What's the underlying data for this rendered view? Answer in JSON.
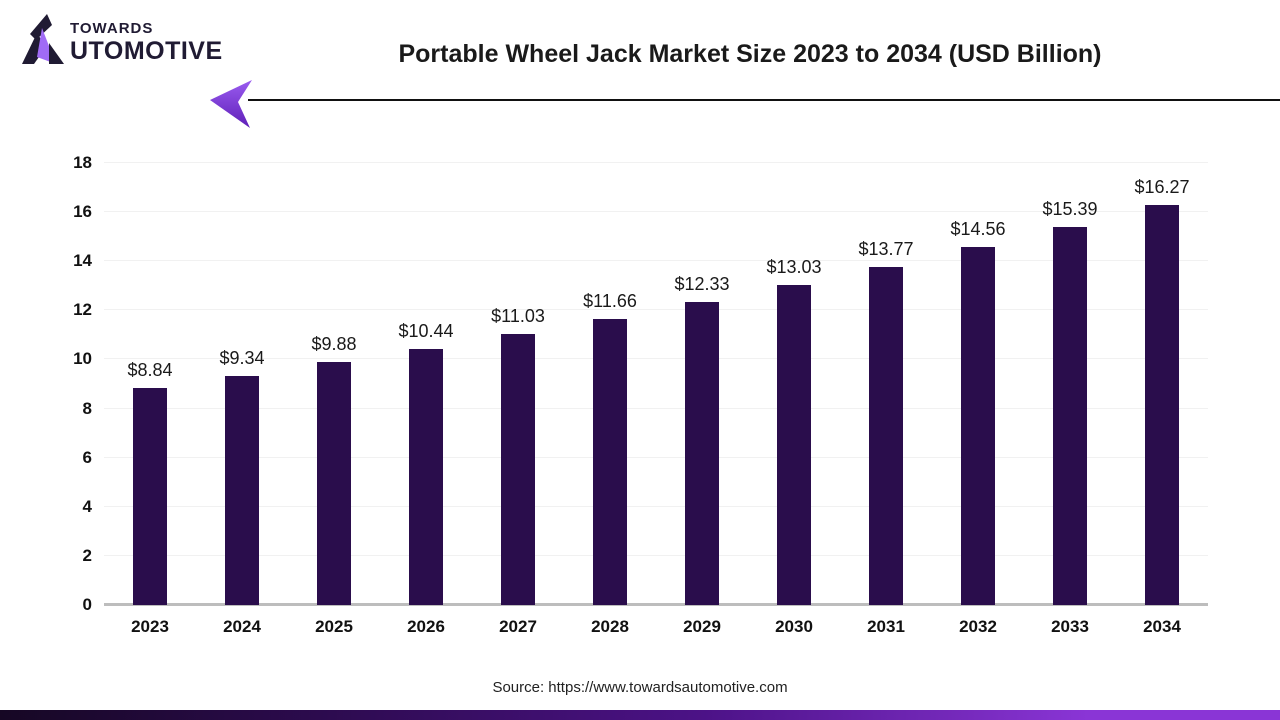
{
  "logo": {
    "top_text": "TOWARDS",
    "bottom_text": "UTOMOTIVE",
    "brand": "TOWARDS AUTOMOTIVE",
    "mark_dark": "#201b33",
    "mark_purple": "#a06bf5"
  },
  "header": {
    "title": "Portable Wheel Jack Market Size 2023 to 2034 (USD Billion)"
  },
  "chart_data": {
    "type": "bar",
    "title": "Portable Wheel Jack Market Size 2023 to 2034 (USD Billion)",
    "categories": [
      "2023",
      "2024",
      "2025",
      "2026",
      "2027",
      "2028",
      "2029",
      "2030",
      "2031",
      "2032",
      "2033",
      "2034"
    ],
    "values": [
      8.84,
      9.34,
      9.88,
      10.44,
      11.03,
      11.66,
      12.33,
      13.03,
      13.77,
      14.56,
      15.39,
      16.27
    ],
    "value_labels": [
      "$8.84",
      "$9.34",
      "$9.88",
      "$10.44",
      "$11.03",
      "$11.66",
      "$12.33",
      "$13.03",
      "$13.77",
      "$14.56",
      "$15.39",
      "$16.27"
    ],
    "xlabel": "",
    "ylabel": "",
    "ylim": [
      0,
      18
    ],
    "ytick_step": 2,
    "grid": true,
    "legend": false,
    "bar_color": "#2a0d4c",
    "grid_color": "#f1f1f1",
    "axis_line_color": "#bdbdbd"
  },
  "decor": {
    "arrow_color_top": "#9a5cf0",
    "arrow_color_bottom": "#5f1fb8",
    "line_color": "#111111"
  },
  "footer": {
    "source": "Source: https://www.towardsautomotive.com",
    "bar_gradient_left": "#160724",
    "bar_gradient_right": "#8a35d6"
  }
}
